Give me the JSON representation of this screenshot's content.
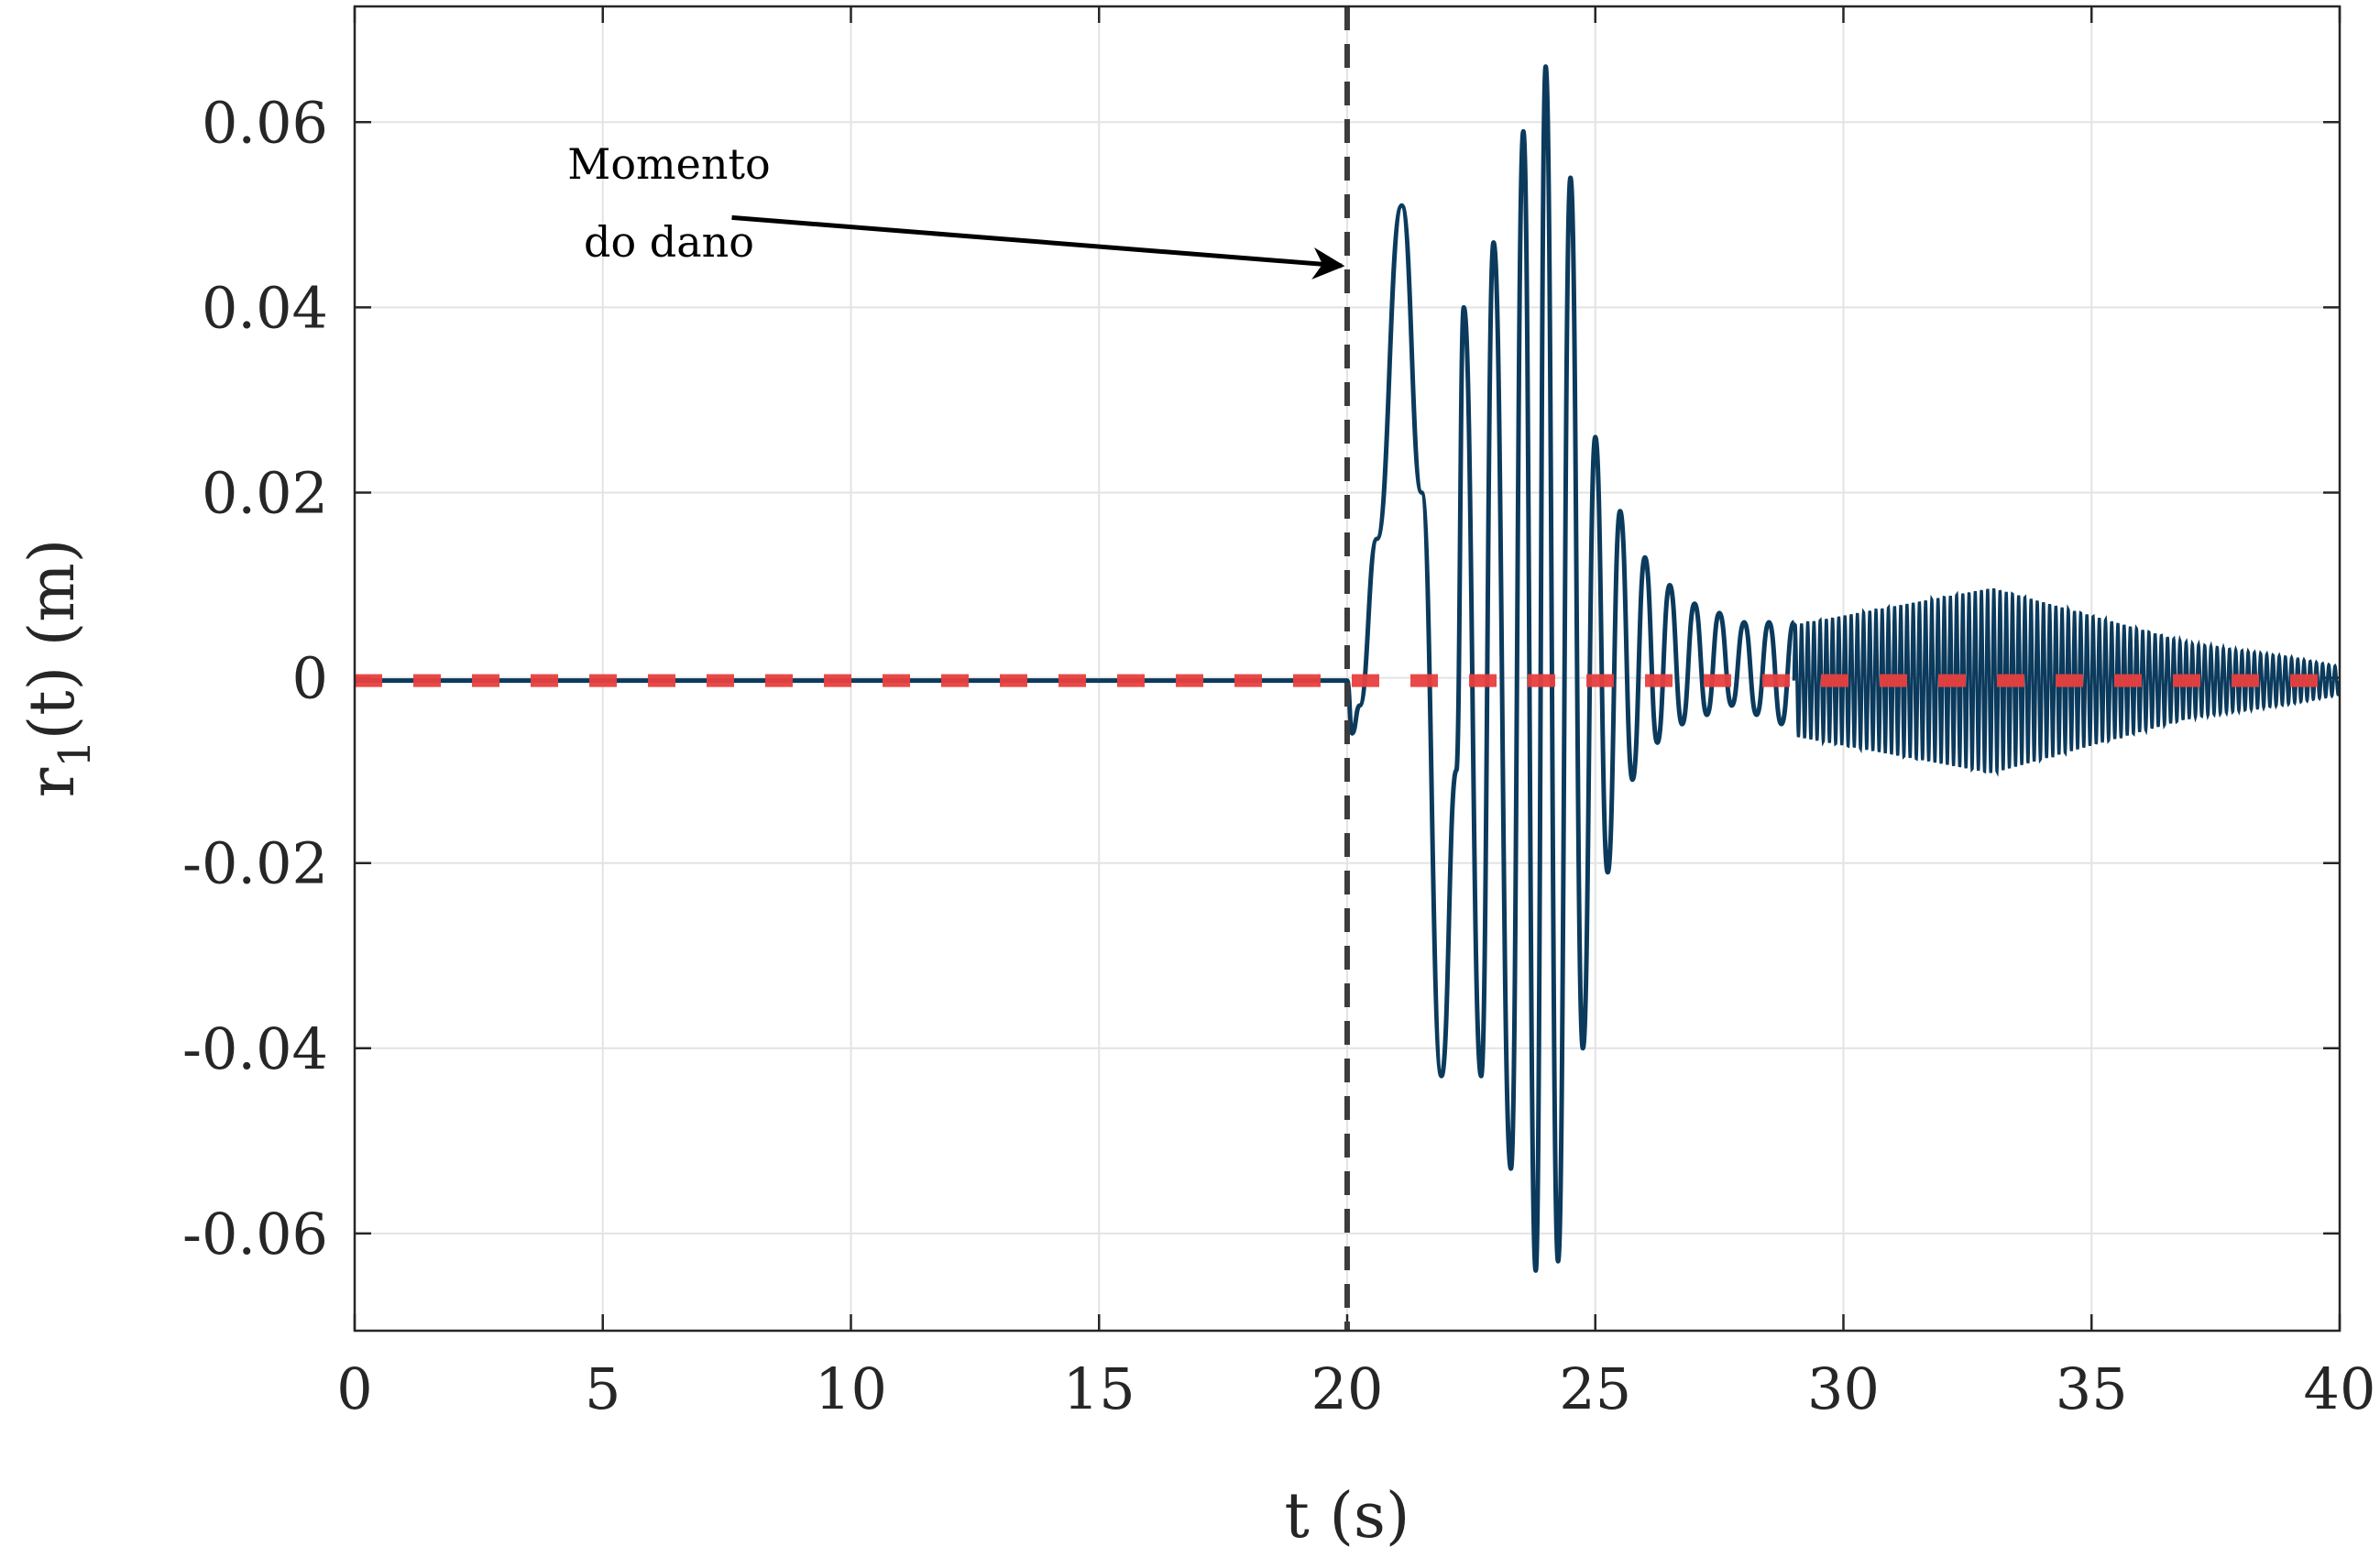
{
  "chart_data": {
    "type": "line",
    "title": "",
    "xlabel": "t (s)",
    "ylabel_main": "r",
    "ylabel_sub": "1",
    "ylabel_rest": "(t) (m)",
    "xlim": [
      0,
      40
    ],
    "ylim": [
      -0.0705,
      0.0725
    ],
    "xticks": [
      0,
      5,
      10,
      15,
      20,
      25,
      30,
      35,
      40
    ],
    "xtick_labels": [
      "0",
      "5",
      "10",
      "15",
      "20",
      "25",
      "30",
      "35",
      "40"
    ],
    "yticks": [
      -0.06,
      -0.04,
      -0.02,
      0,
      0.02,
      0.04,
      0.06
    ],
    "ytick_labels": [
      "-0.06",
      "-0.04",
      "-0.02",
      "0",
      "0.02",
      "0.04",
      "0.06"
    ],
    "grid": true,
    "colors": {
      "response": "#0b3a5c",
      "reference": "#e8403f",
      "damage_line": "#3c3c3c",
      "grid": "#e3e3e3",
      "axes": "#262626"
    },
    "series": [
      {
        "style": "solid",
        "envelope_note": "oscillating response; peak values read from plot",
        "x": [
          0,
          20.0,
          20.1,
          20.25,
          20.6,
          21.1,
          21.5,
          21.9,
          22.2,
          22.35,
          22.7,
          22.95,
          23.3,
          23.55,
          23.8,
          24.0,
          24.25,
          24.5,
          24.75,
          25.0,
          25.25,
          25.5,
          25.75,
          26.0,
          26.25,
          26.5,
          26.75,
          27.0,
          27.25,
          27.5,
          27.75,
          28.0,
          28.25,
          28.5,
          28.75,
          29.0
        ],
        "y": [
          -0.0003,
          -0.0003,
          -0.006,
          -0.003,
          0.015,
          0.051,
          0.02,
          -0.043,
          -0.01,
          0.04,
          -0.043,
          0.047,
          -0.053,
          0.059,
          -0.064,
          0.066,
          -0.063,
          0.054,
          -0.04,
          0.026,
          -0.021,
          0.018,
          -0.011,
          0.013,
          -0.007,
          0.01,
          -0.005,
          0.008,
          -0.004,
          0.007,
          -0.003,
          0.006,
          -0.004,
          0.006,
          -0.005,
          0.006
        ],
        "burst": {
          "t_start": 29.0,
          "t_end": 40.0,
          "amplitude_points": [
            [
              29.0,
              0.006
            ],
            [
              31.0,
              0.008
            ],
            [
              33.0,
              0.01
            ],
            [
              35.0,
              0.007
            ],
            [
              37.0,
              0.004
            ],
            [
              39.0,
              0.0025
            ],
            [
              40.0,
              0.0015
            ]
          ],
          "offset": -0.0003
        }
      },
      {
        "style": "dashed",
        "x": [
          0,
          40
        ],
        "y": [
          -0.0003,
          -0.0003
        ]
      }
    ],
    "vertical_line": {
      "x": 20,
      "style": "dashed"
    },
    "annotation": {
      "line1": "Momento",
      "line2": "do dano",
      "arrow_from": [
        7.6,
        0.0497
      ],
      "arrow_to": [
        20.0,
        0.0445
      ]
    }
  }
}
